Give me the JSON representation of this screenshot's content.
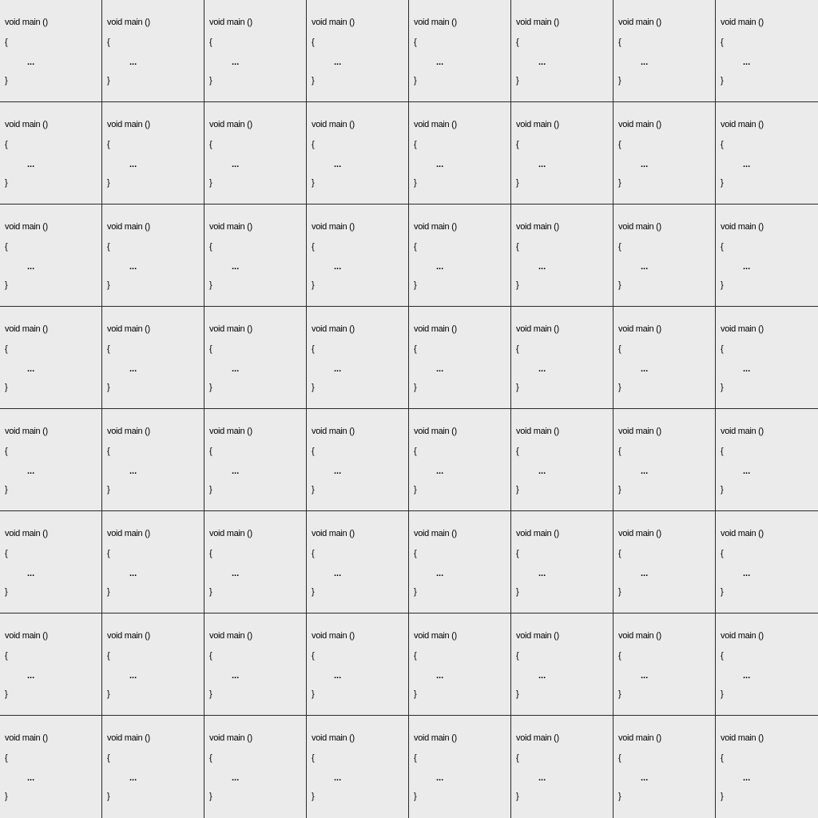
{
  "grid": {
    "rows": 8,
    "columns": 8,
    "snippet": {
      "line1": "void main ()",
      "line2": "{",
      "line3": "...",
      "line4": "}"
    }
  },
  "colors": {
    "background": "#ebebeb",
    "grid_line": "#2a2a2a",
    "text": "#000000"
  }
}
